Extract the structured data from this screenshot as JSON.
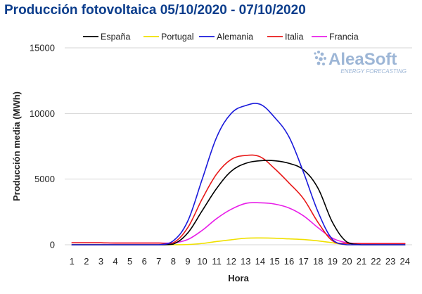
{
  "chart_data": {
    "type": "line",
    "title": "Producción fotovoltaica 05/10/2020 - 07/10/2020",
    "xlabel": "Hora",
    "ylabel": "Producción media (MWh)",
    "x": [
      1,
      2,
      3,
      4,
      5,
      6,
      7,
      8,
      9,
      10,
      11,
      12,
      13,
      14,
      15,
      16,
      17,
      18,
      19,
      20,
      21,
      22,
      23,
      24
    ],
    "xlim": [
      0.5,
      24.5
    ],
    "ylim": [
      0,
      15000
    ],
    "yticks": [
      0,
      5000,
      10000,
      15000
    ],
    "grid": "horizontal",
    "legend_position": "top",
    "series": [
      {
        "name": "España",
        "color": "#000000",
        "values": [
          0,
          0,
          0,
          0,
          0,
          0,
          0,
          50,
          900,
          2600,
          4300,
          5600,
          6200,
          6400,
          6400,
          6200,
          5700,
          4300,
          1700,
          200,
          0,
          0,
          0,
          0
        ]
      },
      {
        "name": "Portugal",
        "color": "#f0e000",
        "values": [
          0,
          0,
          0,
          0,
          0,
          0,
          0,
          0,
          20,
          100,
          250,
          380,
          500,
          520,
          500,
          450,
          400,
          300,
          150,
          0,
          0,
          0,
          0,
          0
        ]
      },
      {
        "name": "Alemania",
        "color": "#1a1adb",
        "values": [
          0,
          0,
          0,
          0,
          0,
          0,
          0,
          300,
          1800,
          5000,
          8200,
          10000,
          10600,
          10700,
          9700,
          8200,
          5500,
          2500,
          400,
          0,
          0,
          0,
          0,
          0
        ]
      },
      {
        "name": "Italia",
        "color": "#e81818",
        "values": [
          150,
          150,
          150,
          130,
          130,
          130,
          130,
          150,
          1300,
          3500,
          5400,
          6500,
          6800,
          6700,
          5800,
          4700,
          3500,
          1700,
          300,
          100,
          80,
          80,
          80,
          80
        ]
      },
      {
        "name": "Francia",
        "color": "#e81ee8",
        "values": [
          150,
          150,
          150,
          130,
          130,
          130,
          130,
          150,
          400,
          1100,
          2000,
          2700,
          3150,
          3200,
          3100,
          2800,
          2200,
          1300,
          500,
          150,
          100,
          100,
          100,
          100
        ]
      }
    ]
  },
  "watermark": {
    "brand": "AleaSoft",
    "tagline": "ENERGY FORECASTING"
  }
}
